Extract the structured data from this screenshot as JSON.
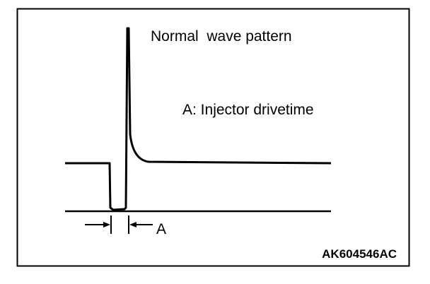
{
  "title": "Normal  wave pattern",
  "legend": "A: Injector drivetime",
  "marker": "A",
  "figure_id": "AK604546AC"
}
